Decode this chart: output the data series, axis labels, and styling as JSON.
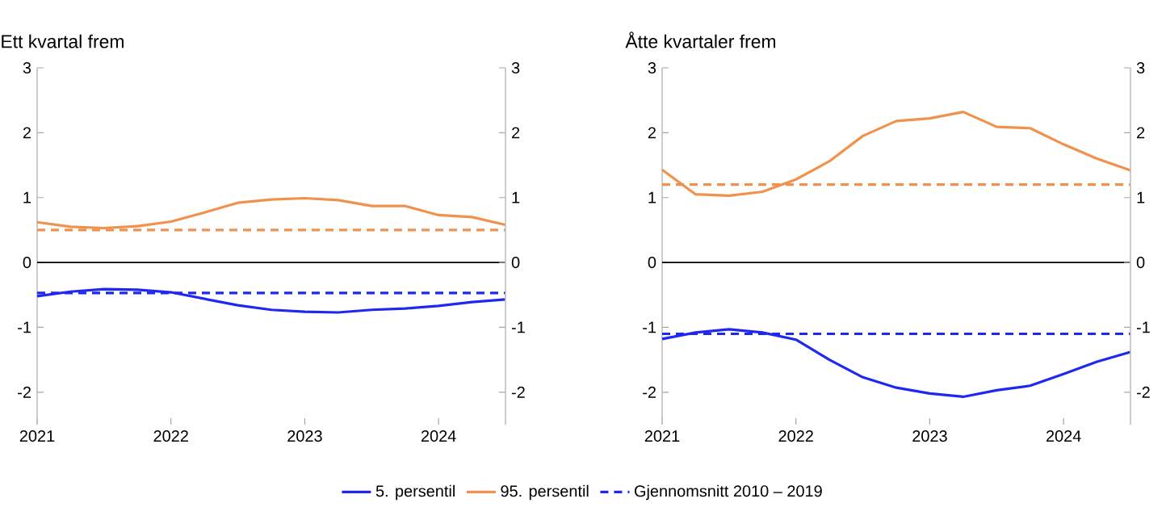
{
  "chart_data": [
    {
      "type": "line",
      "title": "Ett kvartal frem",
      "x": [
        2021,
        2021.25,
        2021.5,
        2021.75,
        2022,
        2022.25,
        2022.5,
        2022.75,
        2023,
        2023.25,
        2023.5,
        2023.75,
        2024,
        2024.25,
        2024.5
      ],
      "xlim": [
        2021,
        2024.5
      ],
      "xticks": [
        2021,
        2022,
        2023,
        2024
      ],
      "ylim": [
        -2.5,
        3
      ],
      "yticks": [
        -2,
        -1,
        0,
        1,
        2,
        3
      ],
      "y2lim": [
        -2.5,
        3
      ],
      "y2ticks": [
        -2,
        -1,
        0,
        1,
        2,
        3
      ],
      "legend": "bottom",
      "marker": "none",
      "ref_lines": [
        {
          "axis": "y",
          "value": 0,
          "color": "#000000"
        }
      ],
      "series": [
        {
          "name": "5. persentil",
          "color": "#1e28f0",
          "values": [
            -0.52,
            -0.45,
            -0.41,
            -0.42,
            -0.46,
            -0.56,
            -0.66,
            -0.73,
            -0.76,
            -0.77,
            -0.73,
            -0.71,
            -0.67,
            -0.61,
            -0.57
          ]
        },
        {
          "name": "95. persentil",
          "color": "#f0924e",
          "values": [
            0.62,
            0.55,
            0.53,
            0.56,
            0.63,
            0.77,
            0.92,
            0.97,
            0.99,
            0.96,
            0.87,
            0.87,
            0.73,
            0.7,
            0.58
          ]
        },
        {
          "name": "Gjennomsnitt 2010 – 2019",
          "color": "#1e28f0",
          "line_style": "dashed",
          "values": [
            -0.47,
            -0.47,
            -0.47,
            -0.47,
            -0.47,
            -0.47,
            -0.47,
            -0.47,
            -0.47,
            -0.47,
            -0.47,
            -0.47,
            -0.47,
            -0.47,
            -0.47
          ]
        },
        {
          "color": "#f0924e",
          "line_style": "dashed",
          "values": [
            0.5,
            0.5,
            0.5,
            0.5,
            0.5,
            0.5,
            0.5,
            0.5,
            0.5,
            0.5,
            0.5,
            0.5,
            0.5,
            0.5,
            0.5
          ]
        }
      ]
    },
    {
      "type": "line",
      "title": "Åtte kvartaler frem",
      "x": [
        2021,
        2021.25,
        2021.5,
        2021.75,
        2022,
        2022.25,
        2022.5,
        2022.75,
        2023,
        2023.25,
        2023.5,
        2023.75,
        2024,
        2024.25,
        2024.5
      ],
      "xlim": [
        2021,
        2024.5
      ],
      "xticks": [
        2021,
        2022,
        2023,
        2024
      ],
      "ylim": [
        -2.5,
        3
      ],
      "yticks": [
        -2,
        -1,
        0,
        1,
        2,
        3
      ],
      "y2lim": [
        -2.5,
        3
      ],
      "y2ticks": [
        -2,
        -1,
        0,
        1,
        2,
        3
      ],
      "marker": "none",
      "ref_lines": [
        {
          "axis": "y",
          "value": 0,
          "color": "#000000"
        }
      ],
      "series": [
        {
          "color": "#1e28f0",
          "values": [
            -1.18,
            -1.08,
            -1.03,
            -1.08,
            -1.19,
            -1.5,
            -1.77,
            -1.93,
            -2.02,
            -2.07,
            -1.97,
            -1.9,
            -1.72,
            -1.53,
            -1.38
          ]
        },
        {
          "color": "#f0924e",
          "values": [
            1.43,
            1.05,
            1.03,
            1.09,
            1.28,
            1.56,
            1.95,
            2.18,
            2.22,
            2.32,
            2.09,
            2.07,
            1.82,
            1.6,
            1.42
          ]
        },
        {
          "color": "#1e28f0",
          "line_style": "dashed",
          "values": [
            -1.1,
            -1.1,
            -1.1,
            -1.1,
            -1.1,
            -1.1,
            -1.1,
            -1.1,
            -1.1,
            -1.1,
            -1.1,
            -1.1,
            -1.1,
            -1.1,
            -1.1
          ]
        },
        {
          "color": "#f0924e",
          "line_style": "dashed",
          "values": [
            1.2,
            1.2,
            1.2,
            1.2,
            1.2,
            1.2,
            1.2,
            1.2,
            1.2,
            1.2,
            1.2,
            1.2,
            1.2,
            1.2,
            1.2
          ]
        }
      ]
    }
  ]
}
